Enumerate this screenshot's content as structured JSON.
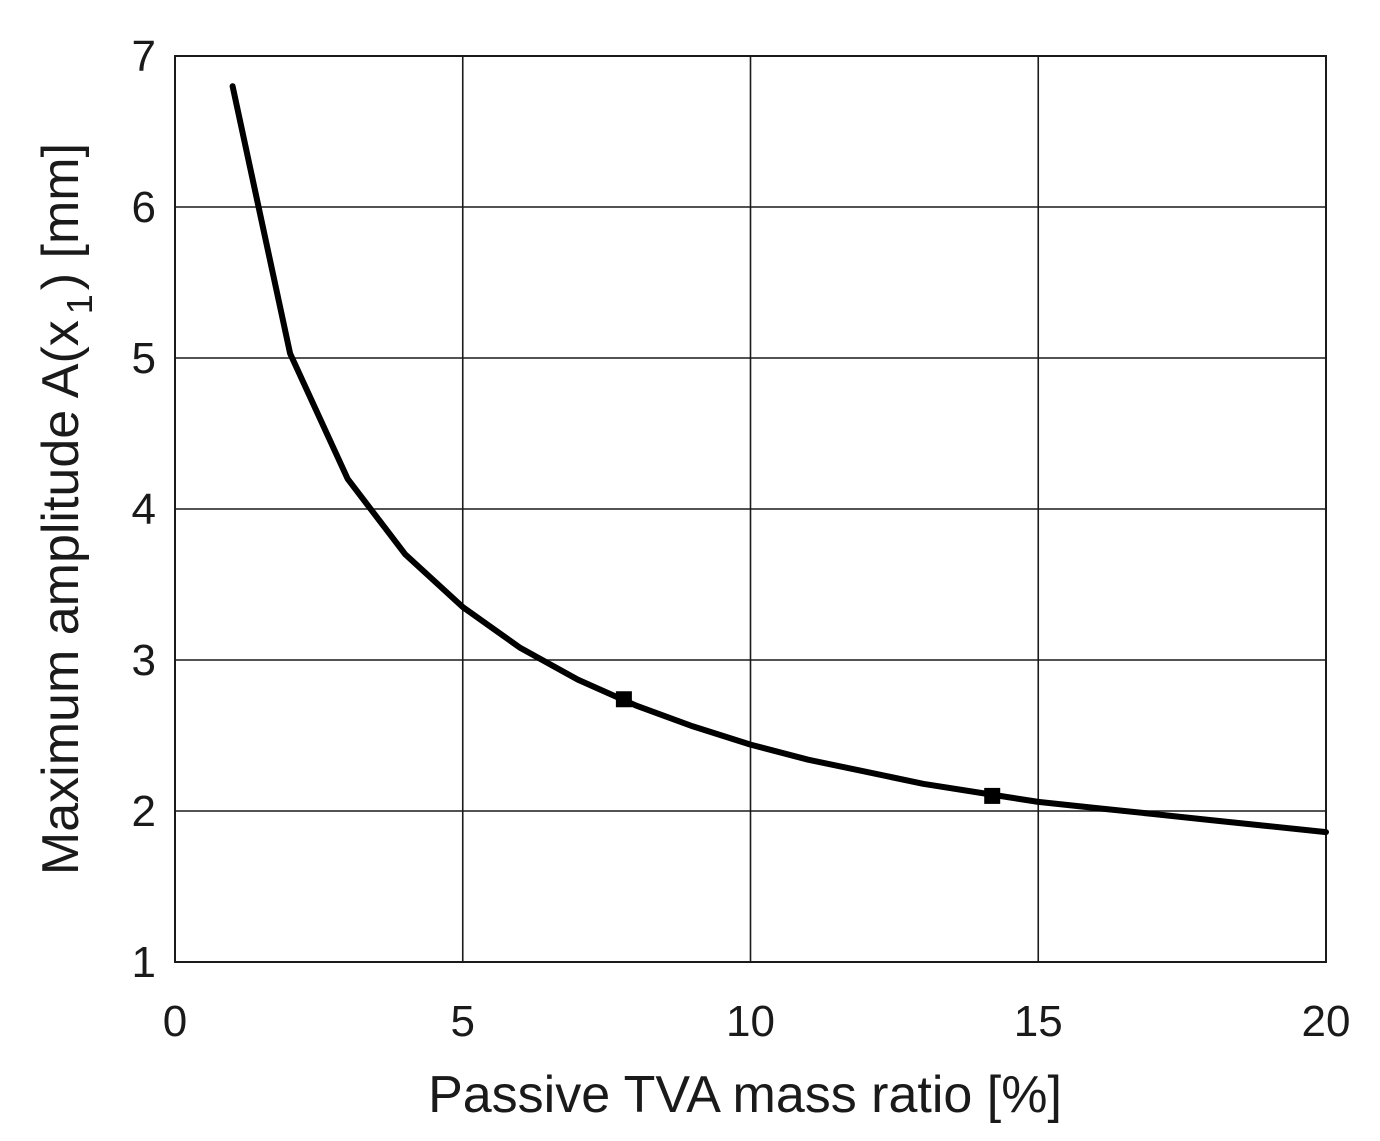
{
  "chart_data": {
    "type": "line",
    "title": "",
    "xlabel": "Passive TVA mass ratio [%]",
    "ylabel": {
      "main": "Maximum amplitude A(x",
      "sub": "1",
      "suffix": ") [mm]"
    },
    "xlim": [
      0,
      20
    ],
    "ylim": [
      1,
      7
    ],
    "xticks": [
      0,
      5,
      10,
      15,
      20
    ],
    "yticks": [
      1,
      2,
      3,
      4,
      5,
      6,
      7
    ],
    "xtick_labels": [
      "0",
      "5",
      "10",
      "15",
      "20"
    ],
    "ytick_labels": [
      "1",
      "2",
      "3",
      "4",
      "5",
      "6",
      "7"
    ],
    "grid": true,
    "legend": "none",
    "series": [
      {
        "name": "Maximum amplitude",
        "x": [
          1,
          2,
          3,
          4,
          5,
          6,
          7,
          8,
          9,
          10,
          11,
          12,
          13,
          14,
          15,
          16,
          17,
          18,
          19,
          20
        ],
        "y": [
          6.8,
          5.03,
          4.2,
          3.7,
          3.35,
          3.08,
          2.87,
          2.7,
          2.56,
          2.44,
          2.34,
          2.26,
          2.18,
          2.12,
          2.06,
          2.02,
          1.98,
          1.94,
          1.9,
          1.86
        ],
        "color": "#000000"
      }
    ],
    "markers": [
      {
        "x": 7.8,
        "y": 2.74
      },
      {
        "x": 14.2,
        "y": 2.1
      }
    ]
  }
}
